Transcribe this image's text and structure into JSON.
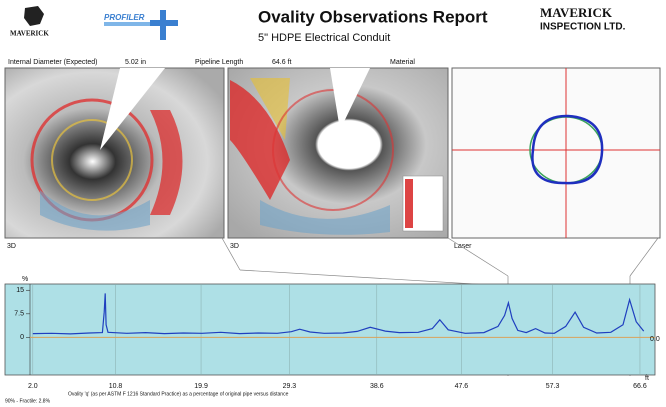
{
  "header": {
    "logo_text": "MAVERICK",
    "profiler_logo": "PROFILER",
    "title": "Ovality Observations Report",
    "subtitle": "5\" HDPE Electrical Conduit",
    "company": "MAVERICK",
    "company_sub": "INSPECTION LTD."
  },
  "info": {
    "diameter_label": "Internal Diameter (Expected)",
    "diameter_value": "5.02 in",
    "length_label": "Pipeline Length",
    "length_value": "64.6 ft",
    "material_label": "Material"
  },
  "panels": [
    "3D",
    "3D",
    "Laser"
  ],
  "chart_data": {
    "type": "line",
    "y_label": "%",
    "x_label": "ft",
    "caption": "Ovality 'q' (as per ASTM F 1216 Standard Practice) as a percentage of original pipe versus distance",
    "fractile": "90% - Fractile: 2.8%",
    "baseline": {
      "value": 0,
      "label": "0.0",
      "color": "#d9a35a"
    },
    "background": "#aee0e6",
    "x": [
      2,
      4,
      6,
      8,
      9.4,
      9.6,
      9.7,
      9.8,
      10,
      12,
      14,
      16,
      18,
      20,
      22,
      24,
      26,
      28,
      29.5,
      30.4,
      31.5,
      33,
      35,
      36.5,
      37.9,
      39.5,
      41,
      43,
      44.5,
      45.3,
      46.2,
      48,
      50,
      51.5,
      52.2,
      52.6,
      53,
      53.6,
      54.5,
      55.5,
      56.5,
      57.5,
      58.7,
      59.7,
      60.6,
      62,
      63.5,
      64.8,
      65.5,
      66.2,
      67
    ],
    "series": [
      {
        "color": "#1f3fbf",
        "values": [
          1.2,
          1.3,
          1.1,
          1.4,
          1.5,
          8,
          14,
          4,
          1.6,
          1.3,
          1.5,
          1.2,
          1.4,
          1.3,
          1.6,
          1.2,
          1.4,
          1.3,
          1.8,
          2.6,
          1.7,
          1.3,
          1.4,
          1.9,
          3.2,
          2.0,
          1.5,
          1.6,
          2.8,
          5.6,
          2.4,
          1.3,
          1.5,
          3.5,
          7,
          11,
          6,
          2.2,
          1.5,
          2.8,
          1.4,
          1.3,
          3.5,
          8,
          3.2,
          1.4,
          1.6,
          4,
          12,
          5,
          2
        ]
      }
    ],
    "xlim": [
      1.7,
      68.2
    ],
    "ylim": [
      -12,
      17
    ],
    "yticks": [
      0,
      7.5,
      15
    ],
    "xticks": [
      {
        "value": 2,
        "label": "2.0"
      },
      10.8,
      19.9,
      29.3,
      38.6,
      47.6,
      57.3,
      66.6
    ]
  }
}
